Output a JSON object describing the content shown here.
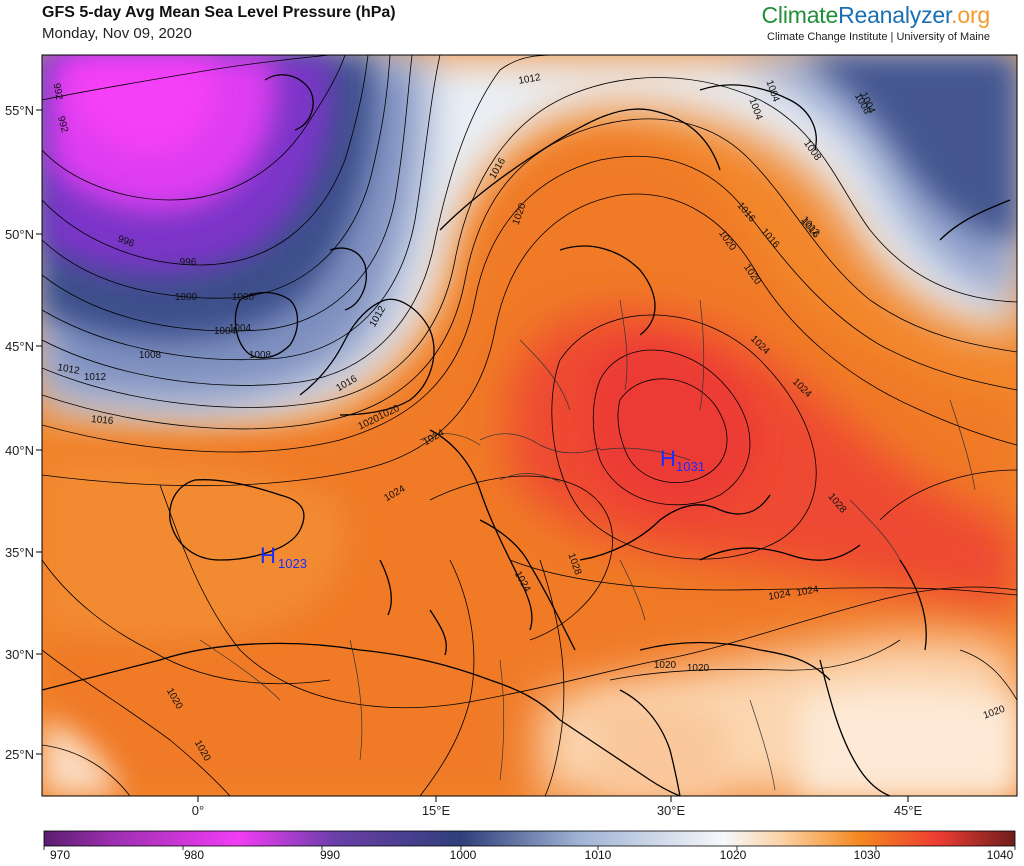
{
  "header": {
    "title": "GFS 5-day Avg Mean Sea Level Pressure (hPa)",
    "date": "Monday, Nov 09, 2020",
    "brand_part1": "Climate",
    "brand_part2": "Reanalyzer",
    "brand_part3": ".org",
    "brand_sub": "Climate Change Institute | University of Maine"
  },
  "map": {
    "lat_labels": [
      "55°N",
      "50°N",
      "45°N",
      "40°N",
      "35°N",
      "30°N",
      "25°N"
    ],
    "lon_labels": [
      "0°",
      "15°E",
      "30°E",
      "45°E"
    ],
    "highs": [
      {
        "symbol": "H",
        "value": "1031"
      },
      {
        "symbol": "H",
        "value": "1023"
      }
    ],
    "isobar_labels": [
      "992",
      "992",
      "996",
      "996",
      "1000",
      "1000",
      "1004",
      "1004",
      "1008",
      "1008",
      "1008",
      "1008",
      "1012",
      "1012",
      "1012",
      "1012",
      "1012",
      "1016",
      "1016",
      "1016",
      "1016",
      "1016",
      "1016",
      "1020",
      "1020",
      "1020",
      "1020",
      "1020",
      "1020",
      "1020",
      "1020",
      "1020",
      "1020",
      "1024",
      "1024",
      "1024",
      "1024",
      "1024",
      "1024",
      "1024",
      "1028",
      "1028",
      "1004",
      "1004",
      "1004"
    ],
    "colors": {
      "low": "#f23cf5",
      "mid": "#eef4fa",
      "high": "#ef3d33",
      "isobar": "#000000",
      "high_marker": "#1a2bff"
    }
  },
  "colorbar": {
    "ticks": [
      "970",
      "980",
      "990",
      "1000",
      "1010",
      "1020",
      "1030",
      "1040"
    ]
  }
}
